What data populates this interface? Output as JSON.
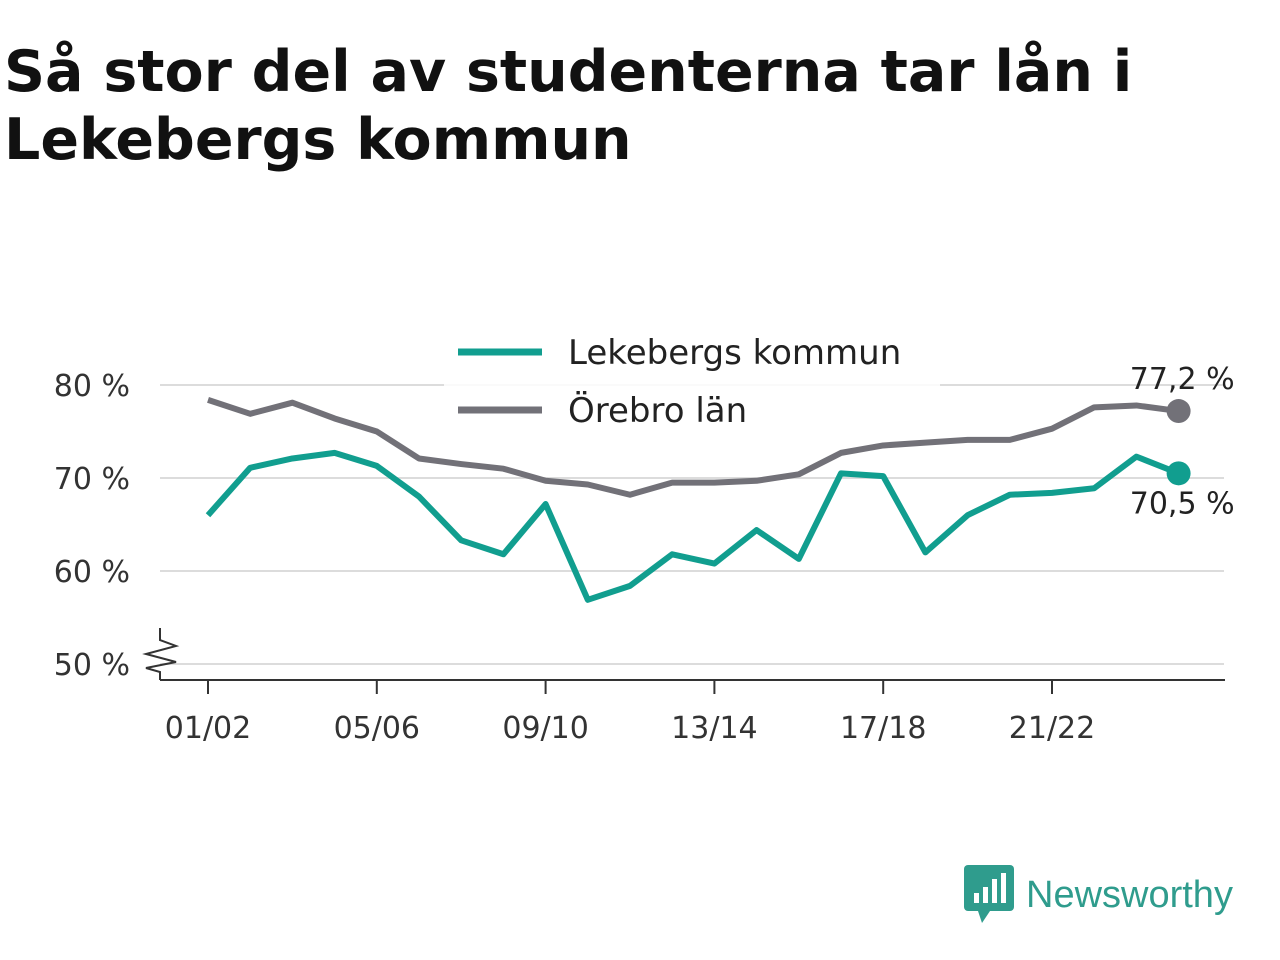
{
  "title": "Så stor del av studenterna tar lån i Lekebergs kommun",
  "brand": {
    "name": "Newsworthy",
    "color": "#2f9c8d"
  },
  "chart_data": {
    "type": "line",
    "title": "Så stor del av studenterna tar lån i Lekebergs kommun",
    "xlabel": "",
    "ylabel": "",
    "x_tick_labels": [
      "01/02",
      "05/06",
      "09/10",
      "13/14",
      "17/18",
      "21/22"
    ],
    "y_tick_labels": [
      "50 %",
      "60 %",
      "70 %",
      "80 %"
    ],
    "ylim": [
      50,
      80
    ],
    "grid": true,
    "legend_position": "top-center",
    "series": [
      {
        "name": "Lekebergs kommun",
        "color": "#119e8f",
        "values": [
          66.0,
          71.1,
          72.1,
          72.7,
          71.3,
          68.0,
          63.3,
          61.8,
          67.2,
          56.9,
          58.4,
          61.8,
          60.8,
          64.4,
          61.3,
          70.5,
          70.2,
          62.0,
          66.0,
          68.2,
          68.4,
          68.9,
          72.3,
          70.5
        ],
        "end_label": "70,5 %"
      },
      {
        "name": "Örebro län",
        "color": "#727178",
        "values": [
          78.4,
          76.9,
          78.1,
          76.4,
          75.0,
          72.1,
          71.5,
          71.0,
          69.7,
          69.3,
          68.2,
          69.5,
          69.5,
          69.7,
          70.4,
          72.7,
          73.5,
          73.8,
          74.1,
          74.1,
          75.3,
          77.6,
          77.8,
          77.2
        ],
        "end_label": "77,2 %"
      }
    ]
  }
}
